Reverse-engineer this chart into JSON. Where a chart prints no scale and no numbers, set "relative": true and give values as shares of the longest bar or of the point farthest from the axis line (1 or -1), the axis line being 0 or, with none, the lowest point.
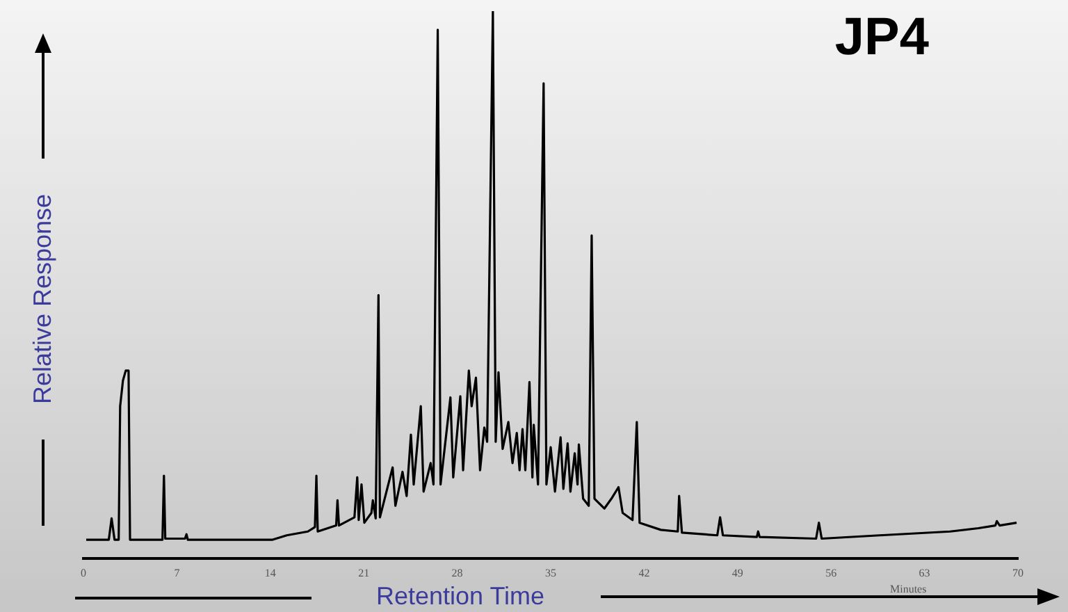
{
  "chart_data": {
    "type": "line",
    "title": "JP4",
    "xlabel": "Retention Time",
    "ylabel": "Relative Response",
    "relative": true,
    "grid": false,
    "legend": false,
    "xlim": [
      0,
      70
    ],
    "xticks": [
      0,
      7,
      14,
      21,
      28,
      35,
      42,
      49,
      56,
      63,
      70
    ],
    "annotations": [
      "Minutes"
    ],
    "series": [
      {
        "color": "#000000",
        "x": [
          0.21,
          1.9,
          2.11,
          2.33,
          2.64,
          2.75,
          2.96,
          3.17,
          3.38,
          3.49,
          5.92,
          6.03,
          6.13,
          7.61,
          7.72,
          7.82,
          14.17,
          15.23,
          16.81,
          17.34,
          17.45,
          17.55,
          18.93,
          19.03,
          19.14,
          20.3,
          20.51,
          20.62,
          20.83,
          21.04,
          21.57,
          21.68,
          21.89,
          22.1,
          22.21,
          23.16,
          23.37,
          23.9,
          24.21,
          24.53,
          24.74,
          25.27,
          25.48,
          26.01,
          26.22,
          26.54,
          26.75,
          27.49,
          27.7,
          28.23,
          28.44,
          28.87,
          29.08,
          29.4,
          29.71,
          30.03,
          30.24,
          30.67,
          30.88,
          31.09,
          31.4,
          31.83,
          32.14,
          32.46,
          32.67,
          32.89,
          33.1,
          33.41,
          33.63,
          33.73,
          34.05,
          34.47,
          34.68,
          35.0,
          35.32,
          35.74,
          35.95,
          36.27,
          36.48,
          36.8,
          37.01,
          37.11,
          37.43,
          37.85,
          38.07,
          38.28,
          39.02,
          39.55,
          40.08,
          40.39,
          41.13,
          41.45,
          41.66,
          43.25,
          44.52,
          44.62,
          44.83,
          47.48,
          47.69,
          47.9,
          50.44,
          50.54,
          50.65,
          54.88,
          55.09,
          55.3,
          59.64,
          64.92,
          67.04,
          68.31,
          68.42,
          68.63,
          69.9
        ],
        "values": [
          0.034,
          0.034,
          0.073,
          0.034,
          0.034,
          0.278,
          0.325,
          0.343,
          0.343,
          0.034,
          0.034,
          0.151,
          0.036,
          0.036,
          0.044,
          0.034,
          0.034,
          0.042,
          0.049,
          0.057,
          0.151,
          0.049,
          0.06,
          0.106,
          0.06,
          0.075,
          0.148,
          0.07,
          0.135,
          0.065,
          0.083,
          0.106,
          0.073,
          0.481,
          0.075,
          0.166,
          0.096,
          0.158,
          0.114,
          0.226,
          0.135,
          0.278,
          0.122,
          0.174,
          0.135,
          0.966,
          0.135,
          0.294,
          0.148,
          0.296,
          0.161,
          0.343,
          0.278,
          0.33,
          0.161,
          0.239,
          0.213,
          1,
          0.213,
          0.34,
          0.2,
          0.249,
          0.174,
          0.229,
          0.161,
          0.236,
          0.161,
          0.322,
          0.148,
          0.244,
          0.135,
          0.868,
          0.135,
          0.203,
          0.122,
          0.221,
          0.127,
          0.21,
          0.122,
          0.192,
          0.135,
          0.208,
          0.109,
          0.096,
          0.59,
          0.109,
          0.091,
          0.109,
          0.13,
          0.083,
          0.07,
          0.249,
          0.065,
          0.052,
          0.049,
          0.114,
          0.047,
          0.042,
          0.075,
          0.042,
          0.039,
          0.049,
          0.039,
          0.036,
          0.065,
          0.036,
          0.042,
          0.049,
          0.055,
          0.06,
          0.068,
          0.06,
          0.065
        ]
      }
    ]
  }
}
